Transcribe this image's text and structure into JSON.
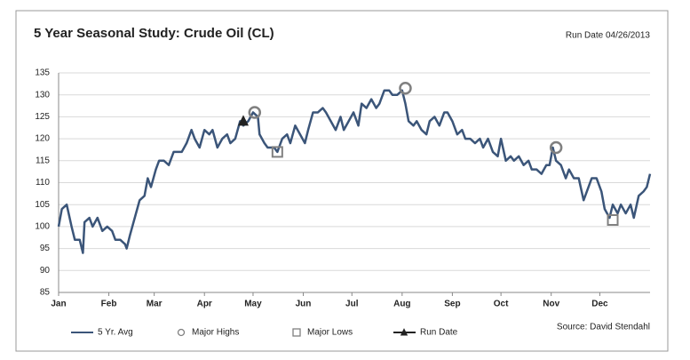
{
  "chart_data": {
    "type": "line",
    "title": "5 Year Seasonal Study: Crude Oil (CL)",
    "subtitle": "Run Date 04/26/2013",
    "source": "Source: David Stendahl",
    "xlim": [
      0,
      365
    ],
    "xticks": [
      {
        "value": 0,
        "label": "Jan"
      },
      {
        "value": 31,
        "label": "Feb"
      },
      {
        "value": 59,
        "label": "Mar"
      },
      {
        "value": 90,
        "label": "Apr"
      },
      {
        "value": 120,
        "label": "May"
      },
      {
        "value": 151,
        "label": "Jun"
      },
      {
        "value": 181,
        "label": "Jul"
      },
      {
        "value": 212,
        "label": "Aug"
      },
      {
        "value": 243,
        "label": "Sep"
      },
      {
        "value": 273,
        "label": "Oct"
      },
      {
        "value": 304,
        "label": "Nov"
      },
      {
        "value": 334,
        "label": "Dec"
      }
    ],
    "ylim": [
      85,
      135
    ],
    "yticks": [
      85,
      90,
      95,
      100,
      105,
      110,
      115,
      120,
      125,
      130,
      135
    ],
    "grid": true,
    "series": [
      {
        "name": "5 Yr. Avg",
        "color": "#3b5579",
        "marker": "line",
        "x": [
          0,
          2,
          5,
          8,
          10,
          13,
          15,
          16,
          19,
          21,
          24,
          27,
          30,
          33,
          35,
          38,
          41,
          42,
          44,
          47,
          50,
          53,
          55,
          57,
          60,
          62,
          65,
          68,
          71,
          73,
          76,
          79,
          82,
          84,
          87,
          90,
          93,
          95,
          98,
          101,
          104,
          106,
          109,
          112,
          114,
          117,
          120,
          123,
          124,
          127,
          129,
          133,
          135,
          138,
          141,
          143,
          146,
          149,
          152,
          154,
          157,
          160,
          163,
          165,
          168,
          171,
          174,
          176,
          179,
          182,
          185,
          187,
          190,
          193,
          196,
          198,
          201,
          204,
          206,
          209,
          212,
          214,
          216,
          219,
          221,
          224,
          227,
          229,
          232,
          235,
          238,
          240,
          243,
          246,
          249,
          251,
          254,
          257,
          260,
          262,
          265,
          268,
          271,
          273,
          276,
          279,
          281,
          284,
          287,
          290,
          292,
          295,
          298,
          301,
          303,
          305,
          307,
          310,
          313,
          315,
          318,
          321,
          324,
          326,
          329,
          332,
          335,
          337,
          340,
          342,
          345,
          347,
          350,
          353,
          355,
          358,
          361,
          363,
          365
        ],
        "values": [
          100,
          104,
          105,
          100,
          97,
          97,
          94,
          101,
          102,
          100,
          102,
          99,
          100,
          99,
          97,
          97,
          96,
          95,
          98,
          102,
          106,
          107,
          111,
          109,
          113,
          115,
          115,
          114,
          117,
          117,
          117,
          119,
          122,
          120,
          118,
          122,
          121,
          122,
          118,
          120,
          121,
          119,
          120,
          124,
          123,
          124,
          126,
          125,
          121,
          119,
          118,
          118,
          117,
          120,
          121,
          119,
          123,
          121,
          119,
          122,
          126,
          126,
          127,
          126,
          124,
          122,
          125,
          122,
          124,
          126,
          123,
          128,
          127,
          129,
          127,
          128,
          131,
          131,
          130,
          130,
          131,
          128,
          124,
          123,
          124,
          122,
          121,
          124,
          125,
          123,
          126,
          126,
          124,
          121,
          122,
          120,
          120,
          119,
          120,
          118,
          120,
          117,
          116,
          120,
          115,
          116,
          115,
          116,
          114,
          115,
          113,
          113,
          112,
          114,
          114,
          118,
          115,
          114,
          111,
          113,
          111,
          111,
          106,
          108,
          111,
          111,
          108,
          104,
          102,
          105,
          103,
          105,
          103,
          105,
          102,
          107,
          108,
          109,
          112
        ]
      },
      {
        "name": "Major Highs",
        "color": "#808080",
        "marker": "circle",
        "x": [
          121,
          214,
          307
        ],
        "values": [
          126,
          131.5,
          118
        ]
      },
      {
        "name": "Major Lows",
        "color": "#808080",
        "marker": "square",
        "x": [
          135,
          342
        ],
        "values": [
          117,
          101.5
        ]
      },
      {
        "name": "Run Date",
        "color": "#222222",
        "marker": "triangle",
        "x": [
          114
        ],
        "values": [
          124
        ]
      }
    ]
  }
}
